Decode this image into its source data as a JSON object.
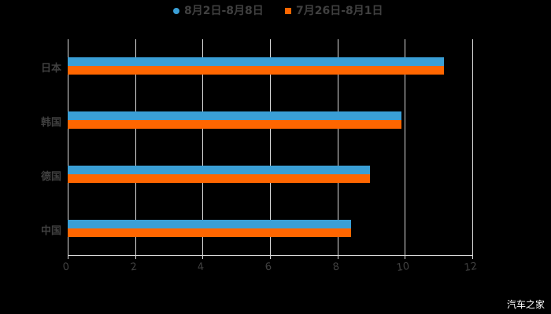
{
  "chart_data": {
    "type": "bar",
    "orientation": "horizontal",
    "title": "",
    "categories": [
      "日本",
      "韩国",
      "德国",
      "中国"
    ],
    "series": [
      {
        "name": "8月2日-8月8日",
        "color": "#3a9fd6",
        "values": [
          11.15,
          9.9,
          8.97,
          8.4
        ]
      },
      {
        "name": "7月26日-8月1日",
        "color": "#ff6600",
        "values": [
          11.15,
          9.9,
          8.97,
          8.4
        ]
      }
    ],
    "xlabel": "",
    "ylabel": "",
    "xlim": [
      0,
      12
    ],
    "xticks": [
      "0",
      "2",
      "4",
      "6",
      "8",
      "10",
      "12"
    ],
    "grid": true,
    "legend_position": "top"
  },
  "legend": [
    {
      "label": "8月2日-8月8日",
      "color": "#3a9fd6",
      "marker": "circle"
    },
    {
      "label": "7月26日-8月1日",
      "color": "#ff6600",
      "marker": "square"
    }
  ],
  "watermark": "汽车之家"
}
